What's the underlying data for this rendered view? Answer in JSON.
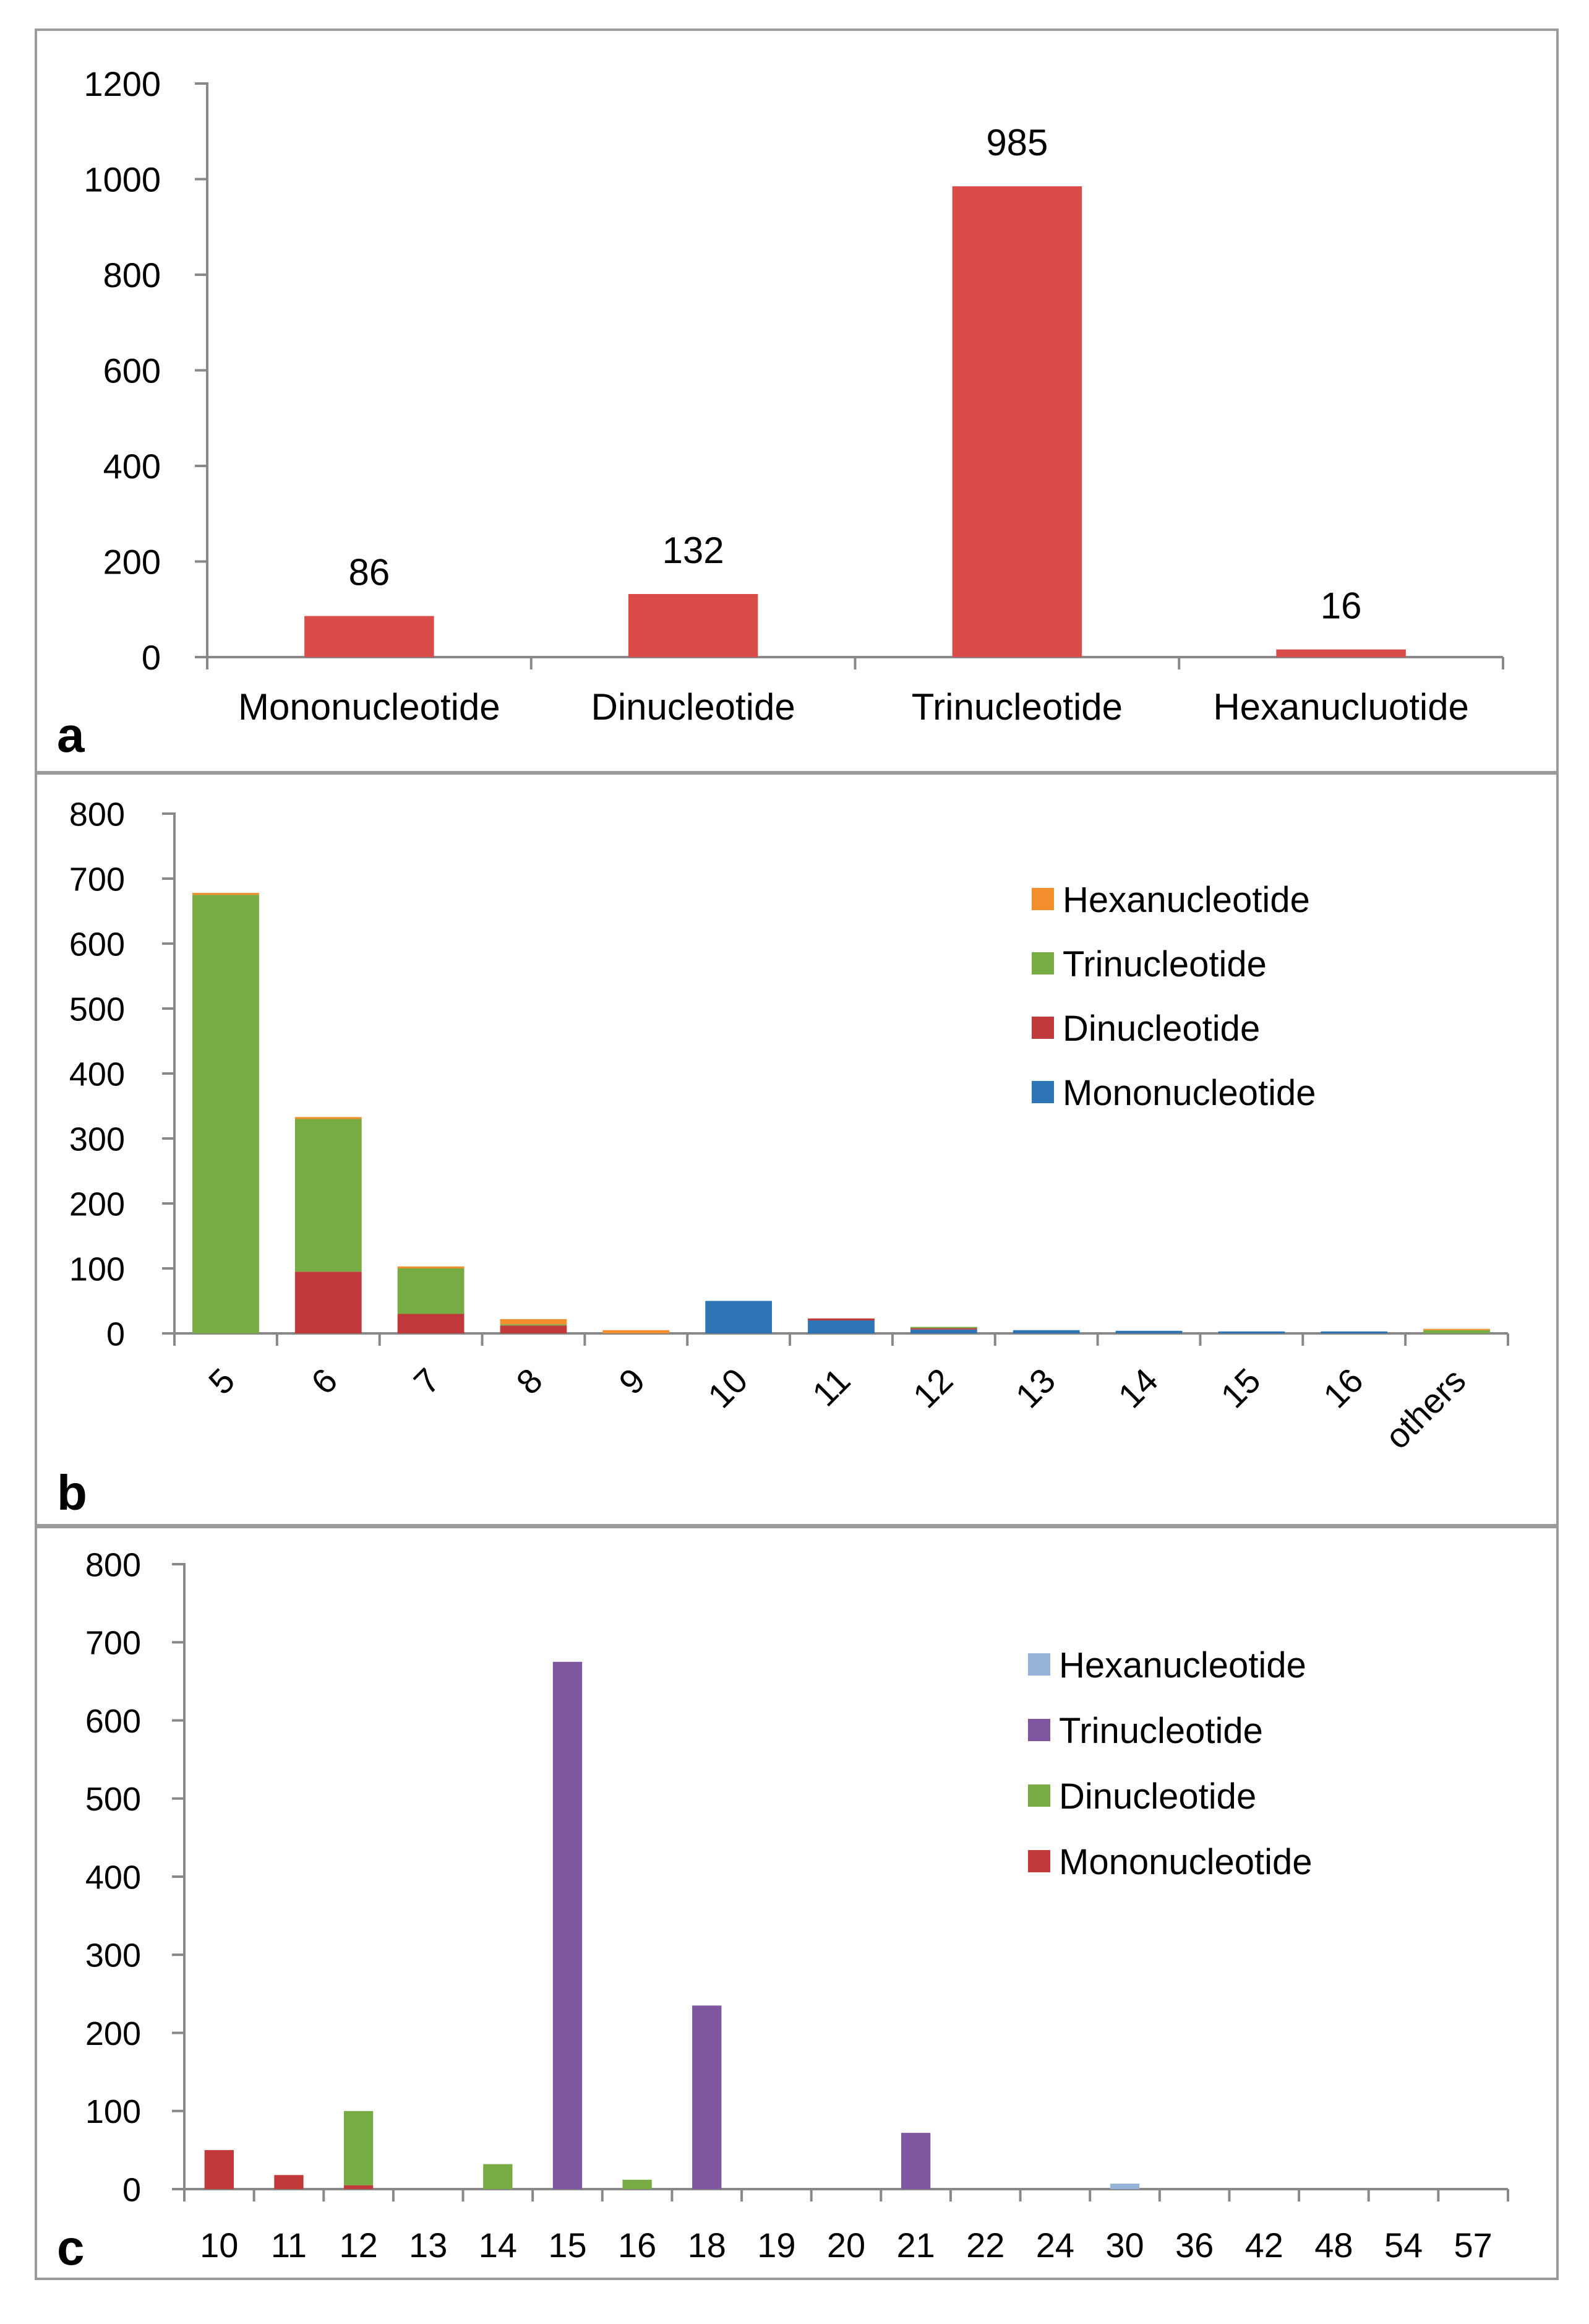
{
  "chart_data": [
    {
      "panel_label": "a",
      "type": "bar",
      "categories": [
        "Mononucleotide",
        "Dinucleotide",
        "Trinucleotide",
        "Hexanucluotide"
      ],
      "values": [
        86,
        132,
        985,
        16
      ],
      "data_labels": [
        "86",
        "132",
        "985",
        "16"
      ],
      "ylim": [
        0,
        1200
      ],
      "yticks": [
        "0",
        "200",
        "400",
        "600",
        "800",
        "1000",
        "1200"
      ],
      "color": "#d94c4a",
      "grid": false
    },
    {
      "panel_label": "b",
      "type": "bar",
      "stacked": true,
      "categories": [
        "5",
        "6",
        "7",
        "8",
        "9",
        "10",
        "11",
        "12",
        "13",
        "14",
        "15",
        "16",
        "others"
      ],
      "series": [
        {
          "name": "Mononucleotide",
          "color": "#2e75b6",
          "values": [
            0,
            0,
            0,
            0,
            0,
            50,
            20,
            6,
            5,
            4,
            3,
            3,
            0
          ]
        },
        {
          "name": "Dinucleotide",
          "color": "#c0393b",
          "values": [
            0,
            95,
            30,
            12,
            0,
            0,
            3,
            2,
            0,
            0,
            0,
            0,
            0
          ]
        },
        {
          "name": "Trinucleotide",
          "color": "#77ab43",
          "values": [
            675,
            235,
            70,
            2,
            0,
            0,
            0,
            2,
            0,
            0,
            0,
            0,
            5
          ]
        },
        {
          "name": "Hexanucleotide",
          "color": "#f28e2b",
          "values": [
            3,
            3,
            3,
            8,
            5,
            0,
            0,
            0,
            0,
            0,
            0,
            0,
            2
          ]
        }
      ],
      "legend_order": [
        3,
        2,
        1,
        0
      ],
      "ylim": [
        0,
        800
      ],
      "yticks": [
        "0",
        "100",
        "200",
        "300",
        "400",
        "500",
        "600",
        "700",
        "800"
      ],
      "legend": "top-right",
      "grid": false
    },
    {
      "panel_label": "c",
      "type": "bar",
      "stacked": true,
      "categories": [
        "10",
        "11",
        "12",
        "13",
        "14",
        "15",
        "16",
        "18",
        "19",
        "20",
        "21",
        "22",
        "24",
        "30",
        "36",
        "42",
        "48",
        "54",
        "57"
      ],
      "series": [
        {
          "name": "Mononucleotide",
          "color": "#c0393b",
          "values": [
            50,
            18,
            5,
            0,
            0,
            0,
            0,
            0,
            0,
            0,
            0,
            0,
            0,
            0,
            0,
            0,
            0,
            0,
            0
          ]
        },
        {
          "name": "Dinucleotide",
          "color": "#77ab43",
          "values": [
            0,
            0,
            95,
            0,
            32,
            0,
            12,
            0,
            0,
            0,
            0,
            0,
            0,
            0,
            0,
            0,
            0,
            0,
            0
          ]
        },
        {
          "name": "Trinucleotide",
          "color": "#7e57a0",
          "values": [
            0,
            0,
            0,
            0,
            0,
            675,
            0,
            235,
            0,
            0,
            72,
            0,
            0,
            0,
            0,
            0,
            0,
            0,
            0
          ]
        },
        {
          "name": "Hexanucleotide",
          "color": "#95b3d7",
          "values": [
            0,
            0,
            0,
            0,
            0,
            0,
            0,
            0,
            0,
            0,
            0,
            0,
            0,
            7,
            0,
            0,
            0,
            0,
            0
          ]
        }
      ],
      "legend_order": [
        3,
        2,
        1,
        0
      ],
      "ylim": [
        0,
        800
      ],
      "yticks": [
        "0",
        "100",
        "200",
        "300",
        "400",
        "500",
        "600",
        "700",
        "800"
      ],
      "legend": "top-right",
      "grid": false
    }
  ]
}
